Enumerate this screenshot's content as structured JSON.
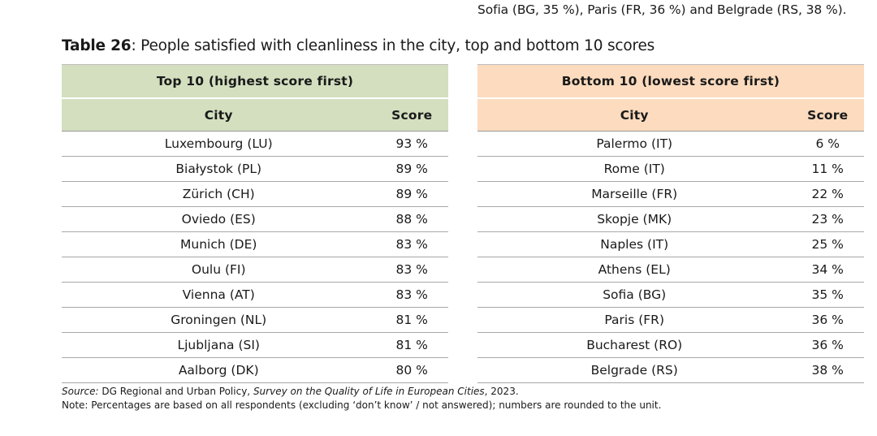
{
  "intro_tail": "Sofia (BG, 35 %), Paris (FR, 36 %) and Belgrade (RS, 38 %).",
  "table": {
    "number": "Table 26",
    "caption": ": People satisfied with cleanliness in the city, top and bottom 10 scores",
    "colors": {
      "top_header": "#d3dfbf",
      "bottom_header": "#fcdbbe"
    },
    "top": {
      "heading": "Top 10 (highest score first)",
      "col_city": "City",
      "col_score": "Score",
      "rows": [
        {
          "city": "Luxembourg (LU)",
          "score": "93 %"
        },
        {
          "city": "Białystok (PL)",
          "score": "89 %"
        },
        {
          "city": "Zürich (CH)",
          "score": "89 %"
        },
        {
          "city": "Oviedo (ES)",
          "score": "88 %"
        },
        {
          "city": "Munich (DE)",
          "score": "83 %"
        },
        {
          "city": "Oulu (FI)",
          "score": "83 %"
        },
        {
          "city": "Vienna (AT)",
          "score": "83 %"
        },
        {
          "city": "Groningen (NL)",
          "score": "81 %"
        },
        {
          "city": "Ljubljana (SI)",
          "score": "81 %"
        },
        {
          "city": "Aalborg (DK)",
          "score": "80 %"
        }
      ]
    },
    "bottom": {
      "heading": "Bottom 10 (lowest score first)",
      "col_city": "City",
      "col_score": "Score",
      "rows": [
        {
          "city": "Palermo (IT)",
          "score": "6 %"
        },
        {
          "city": "Rome (IT)",
          "score": "11 %"
        },
        {
          "city": "Marseille (FR)",
          "score": "22 %"
        },
        {
          "city": "Skopje (MK)",
          "score": "23 %"
        },
        {
          "city": "Naples (IT)",
          "score": "25 %"
        },
        {
          "city": "Athens (EL)",
          "score": "34 %"
        },
        {
          "city": "Sofia (BG)",
          "score": "35 %"
        },
        {
          "city": "Paris (FR)",
          "score": "36 %"
        },
        {
          "city": "Bucharest (RO)",
          "score": "36 %"
        },
        {
          "city": "Belgrade (RS)",
          "score": "38 %"
        }
      ]
    }
  },
  "source": {
    "label": "Source:",
    "org": " DG Regional and Urban Policy, ",
    "title": "Survey on the Quality of Life in European Cities",
    "year": ", 2023."
  },
  "note": "Note: Percentages are based on all respondents (excluding ‘don’t know’ / not answered); numbers are rounded to the unit."
}
